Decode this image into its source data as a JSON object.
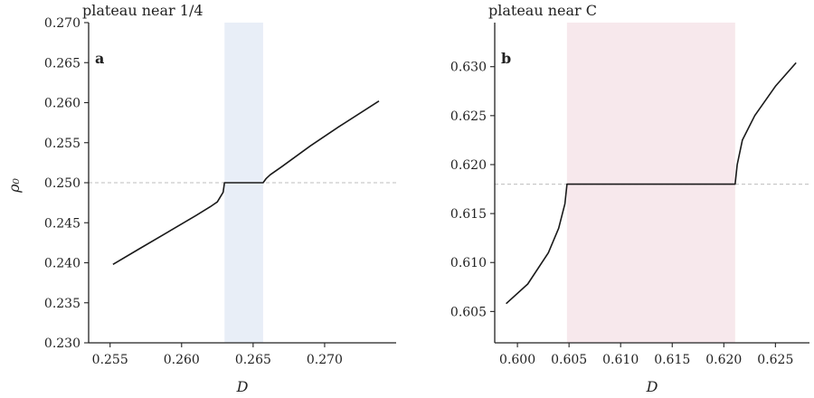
{
  "figure": {
    "y_axis_label": "ρ₀",
    "x_axis_label": "D"
  },
  "chart_data": [
    {
      "type": "line",
      "panel_label": "a",
      "title": "plateau near 1/4",
      "xlabel": "D",
      "ylabel": "ρ₀",
      "xlim": [
        0.2535,
        0.275
      ],
      "ylim": [
        0.23,
        0.27
      ],
      "x_ticks": [
        0.255,
        0.26,
        0.265,
        0.27
      ],
      "x_tick_labels": [
        "0.255",
        "0.260",
        "0.265",
        "0.270"
      ],
      "y_ticks": [
        0.23,
        0.235,
        0.24,
        0.245,
        0.25,
        0.255,
        0.26,
        0.265,
        0.27
      ],
      "y_tick_labels": [
        "0.230",
        "0.235",
        "0.240",
        "0.245",
        "0.250",
        "0.255",
        "0.260",
        "0.265",
        "0.270"
      ],
      "reference_line_y": 0.25,
      "shaded_region": {
        "x": [
          0.263,
          0.2657
        ],
        "color": "#e8eef7"
      },
      "grid": false,
      "series": [
        {
          "color": "#1a1a1a",
          "x": [
            0.2552,
            0.257,
            0.259,
            0.261,
            0.262,
            0.2625,
            0.2629,
            0.263,
            0.2645,
            0.2657,
            0.2659,
            0.2662,
            0.267,
            0.269,
            0.271,
            0.2738
          ],
          "y": [
            0.2398,
            0.2417,
            0.2438,
            0.2459,
            0.247,
            0.2476,
            0.2488,
            0.25,
            0.25,
            0.25,
            0.2505,
            0.251,
            0.252,
            0.2546,
            0.257,
            0.2602
          ]
        }
      ]
    },
    {
      "type": "line",
      "panel_label": "b",
      "title": "plateau near C",
      "xlabel": "D",
      "ylabel": "",
      "xlim": [
        0.5978,
        0.6283
      ],
      "ylim": [
        0.6018,
        0.6345
      ],
      "x_ticks": [
        0.6,
        0.605,
        0.61,
        0.615,
        0.62,
        0.625
      ],
      "x_tick_labels": [
        "0.600",
        "0.605",
        "0.610",
        "0.615",
        "0.620",
        "0.625"
      ],
      "y_ticks": [
        0.605,
        0.61,
        0.615,
        0.62,
        0.625,
        0.63
      ],
      "y_tick_labels": [
        "0.605",
        "0.610",
        "0.615",
        "0.620",
        "0.625",
        "0.630"
      ],
      "reference_line_y": 0.618,
      "shaded_region": {
        "x": [
          0.6048,
          0.6211
        ],
        "color": "#f7e8ec"
      },
      "grid": false,
      "series": [
        {
          "color": "#1a1a1a",
          "x": [
            0.5989,
            0.601,
            0.603,
            0.604,
            0.6046,
            0.6048,
            0.61,
            0.615,
            0.62,
            0.6211,
            0.6213,
            0.6218,
            0.623,
            0.625,
            0.627
          ],
          "y": [
            0.6058,
            0.6078,
            0.611,
            0.6135,
            0.616,
            0.618,
            0.618,
            0.618,
            0.618,
            0.618,
            0.62,
            0.6225,
            0.625,
            0.628,
            0.6304
          ]
        }
      ]
    }
  ]
}
